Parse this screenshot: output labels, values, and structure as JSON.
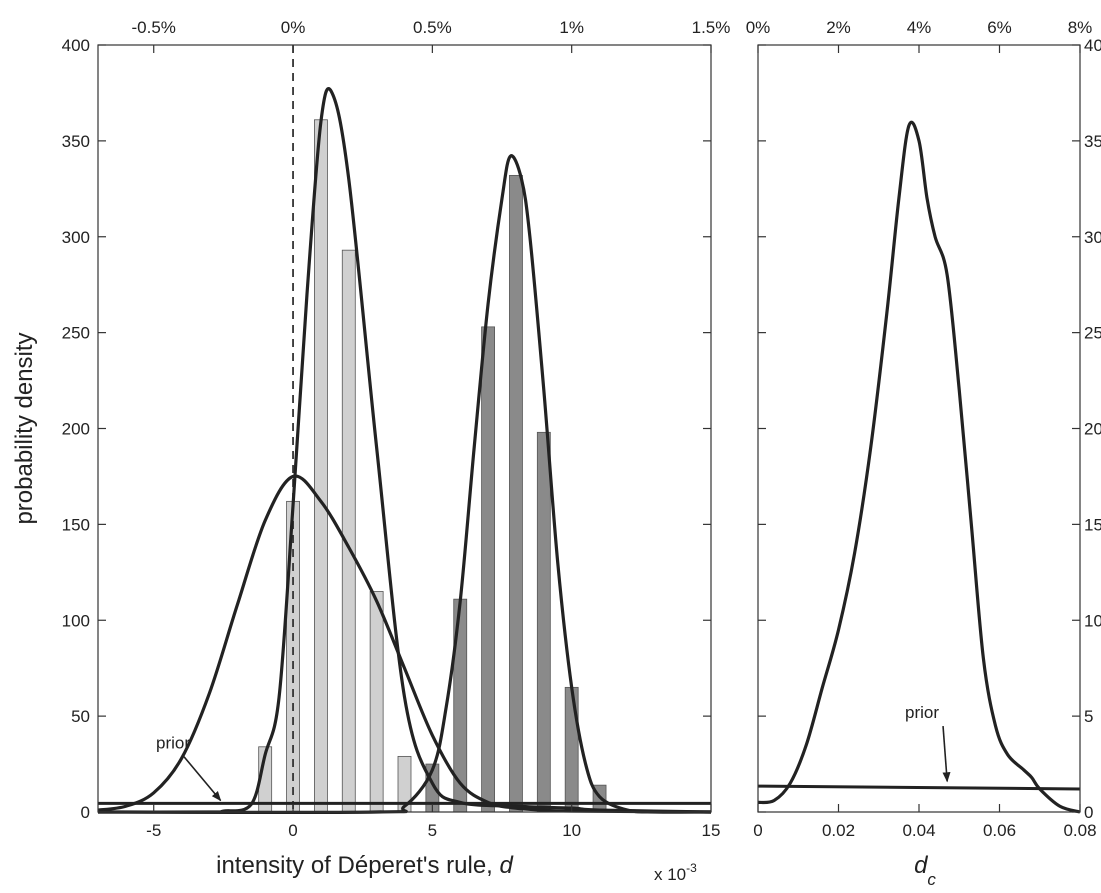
{
  "chart_data": [
    {
      "type": "bar",
      "title": "",
      "xlabel": "intensity of Déperet's rule, ",
      "xlabel_var": "d",
      "ylabel": "probability density",
      "x_multiplier": "x 10",
      "x_multiplier_exp": "-3",
      "xlim": [
        -7,
        15
      ],
      "ylim": [
        0,
        400
      ],
      "x_ticks": [
        -5,
        0,
        5,
        10,
        15
      ],
      "x_tick_labels": [
        "-5",
        "0",
        "5",
        "10",
        "15"
      ],
      "y_ticks": [
        0,
        50,
        100,
        150,
        200,
        250,
        300,
        350,
        400
      ],
      "y_tick_labels": [
        "0",
        "50",
        "100",
        "150",
        "200",
        "250",
        "300",
        "350",
        "400"
      ],
      "top_ticks": [
        -5,
        0,
        5,
        10,
        15
      ],
      "top_tick_labels": [
        "-0.5%",
        "0%",
        "0.5%",
        "1%",
        "1.5%"
      ],
      "grid": false,
      "zero_line": {
        "x": 0,
        "style": "dashed"
      },
      "series": [
        {
          "color": "#d0d0d0",
          "bars": [
            {
              "x": -1,
              "y": 34
            },
            {
              "x": 0,
              "y": 162
            },
            {
              "x": 1,
              "y": 361
            },
            {
              "x": 2,
              "y": 293
            },
            {
              "x": 3,
              "y": 115
            },
            {
              "x": 4,
              "y": 29
            },
            {
              "x": 5,
              "y": 5
            }
          ]
        },
        {
          "color": "#8a8a8a",
          "bars": [
            {
              "x": 5,
              "y": 25
            },
            {
              "x": 6,
              "y": 111
            },
            {
              "x": 7,
              "y": 253
            },
            {
              "x": 8,
              "y": 332
            },
            {
              "x": 9,
              "y": 198
            },
            {
              "x": 10,
              "y": 65
            },
            {
              "x": 11,
              "y": 14
            }
          ]
        }
      ],
      "curves": [
        {
          "points": [
            [
              -7,
              1
            ],
            [
              -6,
              3
            ],
            [
              -5,
              10
            ],
            [
              -4,
              28
            ],
            [
              -3,
              62
            ],
            [
              -2,
              108
            ],
            [
              -1,
              152
            ],
            [
              0,
              175
            ],
            [
              1,
              162
            ],
            [
              2,
              138
            ],
            [
              3,
              110
            ],
            [
              4,
              75
            ],
            [
              5,
              40
            ],
            [
              6,
              15
            ],
            [
              7,
              5
            ],
            [
              8,
              2
            ],
            [
              9,
              1
            ],
            [
              10,
              0.5
            ],
            [
              15,
              0
            ]
          ]
        },
        {
          "points": [
            [
              -7,
              0
            ],
            [
              -3,
              0
            ],
            [
              -2.5,
              0.5
            ],
            [
              -1.5,
              4
            ],
            [
              -1,
              30
            ],
            [
              -0.5,
              60
            ],
            [
              0,
              160
            ],
            [
              0.5,
              270
            ],
            [
              1,
              360
            ],
            [
              1.4,
              375
            ],
            [
              2,
              330
            ],
            [
              3,
              190
            ],
            [
              4,
              60
            ],
            [
              5,
              15
            ],
            [
              6,
              5
            ],
            [
              8,
              3
            ],
            [
              10,
              2
            ],
            [
              11,
              1
            ],
            [
              15,
              0
            ]
          ]
        },
        {
          "points": [
            [
              -7,
              0
            ],
            [
              3,
              0
            ],
            [
              4,
              3
            ],
            [
              5,
              22
            ],
            [
              5.5,
              55
            ],
            [
              6,
              110
            ],
            [
              6.5,
              190
            ],
            [
              7,
              265
            ],
            [
              7.5,
              320
            ],
            [
              7.8,
              342
            ],
            [
              8.2,
              330
            ],
            [
              8.5,
              300
            ],
            [
              9,
              220
            ],
            [
              9.5,
              130
            ],
            [
              10,
              65
            ],
            [
              10.5,
              25
            ],
            [
              11,
              8
            ],
            [
              12,
              1
            ],
            [
              13,
              0
            ],
            [
              15,
              0
            ]
          ]
        }
      ],
      "prior_line": {
        "y": 4.5
      },
      "annotation": {
        "text": "prior",
        "x": -4.2,
        "y": 33,
        "arrow_to_x": -2.6,
        "arrow_to_y": 6
      }
    },
    {
      "type": "line",
      "title": "",
      "xlabel": "d",
      "xlabel_sub": "c",
      "xlim": [
        0,
        0.08
      ],
      "ylim": [
        0,
        40
      ],
      "x_ticks": [
        0,
        0.02,
        0.04,
        0.06,
        0.08
      ],
      "x_tick_labels": [
        "0",
        "0.02",
        "0.04",
        "0.06",
        "0.08"
      ],
      "y_ticks": [
        0,
        5,
        10,
        15,
        20,
        25,
        30,
        35,
        40
      ],
      "y_tick_labels": [
        "0",
        "5",
        "10",
        "15",
        "20",
        "25",
        "30",
        "35",
        "40"
      ],
      "y_axis_side": "right",
      "top_ticks": [
        0,
        0.02,
        0.04,
        0.06,
        0.08
      ],
      "top_tick_labels": [
        "0%",
        "2%",
        "4%",
        "6%",
        "8%"
      ],
      "grid": false,
      "curves": [
        {
          "points": [
            [
              0,
              0.5
            ],
            [
              0.004,
              0.6
            ],
            [
              0.008,
              1.5
            ],
            [
              0.012,
              3.5
            ],
            [
              0.016,
              6.5
            ],
            [
              0.02,
              9.5
            ],
            [
              0.024,
              13.5
            ],
            [
              0.028,
              19
            ],
            [
              0.032,
              26
            ],
            [
              0.035,
              32
            ],
            [
              0.0375,
              35.8
            ],
            [
              0.04,
              35
            ],
            [
              0.042,
              32
            ],
            [
              0.044,
              30
            ],
            [
              0.047,
              28
            ],
            [
              0.05,
              22
            ],
            [
              0.053,
              15
            ],
            [
              0.056,
              8
            ],
            [
              0.059,
              4.5
            ],
            [
              0.062,
              3
            ],
            [
              0.066,
              2.2
            ],
            [
              0.068,
              1.8
            ],
            [
              0.07,
              1.2
            ],
            [
              0.075,
              0.3
            ],
            [
              0.08,
              0
            ]
          ]
        }
      ],
      "prior_line": {
        "y0": 1.35,
        "y1": 1.2
      },
      "annotation": {
        "text": "prior",
        "x": 0.0415,
        "y": 4.9,
        "arrow_to_x": 0.047,
        "arrow_to_y": 1.6
      }
    }
  ]
}
